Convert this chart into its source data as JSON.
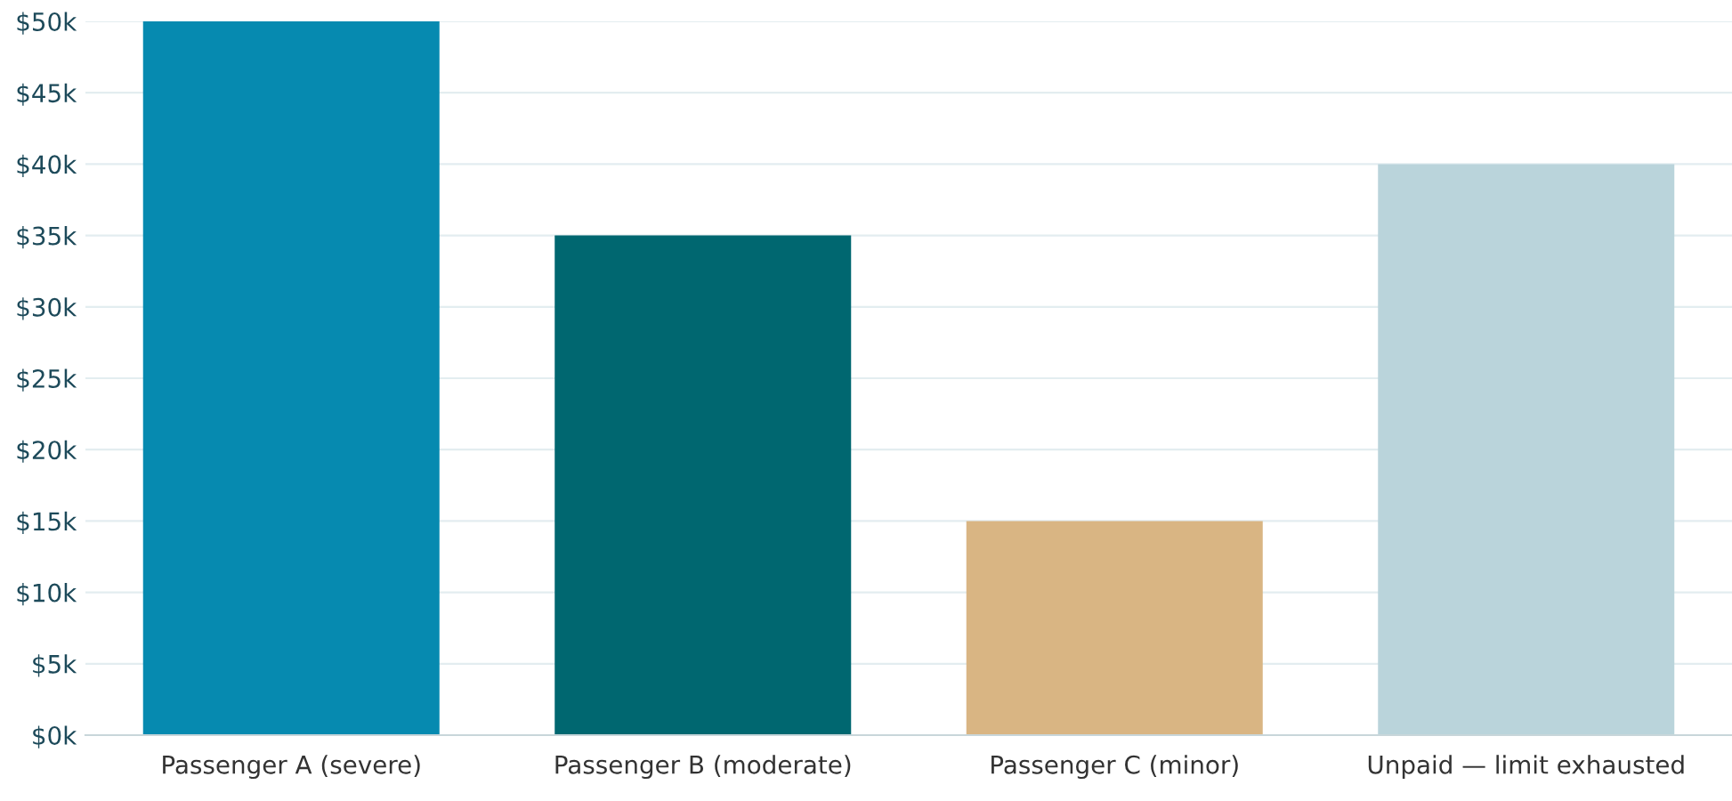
{
  "chart_data": {
    "type": "bar",
    "categories": [
      "Passenger A (severe)",
      "Passenger B (moderate)",
      "Passenger C (minor)",
      "Unpaid — limit exhausted"
    ],
    "values": [
      50000,
      35000,
      15000,
      40000
    ],
    "colors": [
      "#068ab0",
      "#006770",
      "#d9b583",
      "#bad4db"
    ],
    "ylim": [
      0,
      50000
    ],
    "yticks": [
      {
        "value": 0,
        "label": "$0k"
      },
      {
        "value": 5000,
        "label": "$5k"
      },
      {
        "value": 10000,
        "label": "$10k"
      },
      {
        "value": 15000,
        "label": "$15k"
      },
      {
        "value": 20000,
        "label": "$20k"
      },
      {
        "value": 25000,
        "label": "$25k"
      },
      {
        "value": 30000,
        "label": "$30k"
      },
      {
        "value": 35000,
        "label": "$35k"
      },
      {
        "value": 40000,
        "label": "$40k"
      },
      {
        "value": 45000,
        "label": "$45k"
      },
      {
        "value": 50000,
        "label": "$50k"
      }
    ],
    "grid": "y"
  }
}
